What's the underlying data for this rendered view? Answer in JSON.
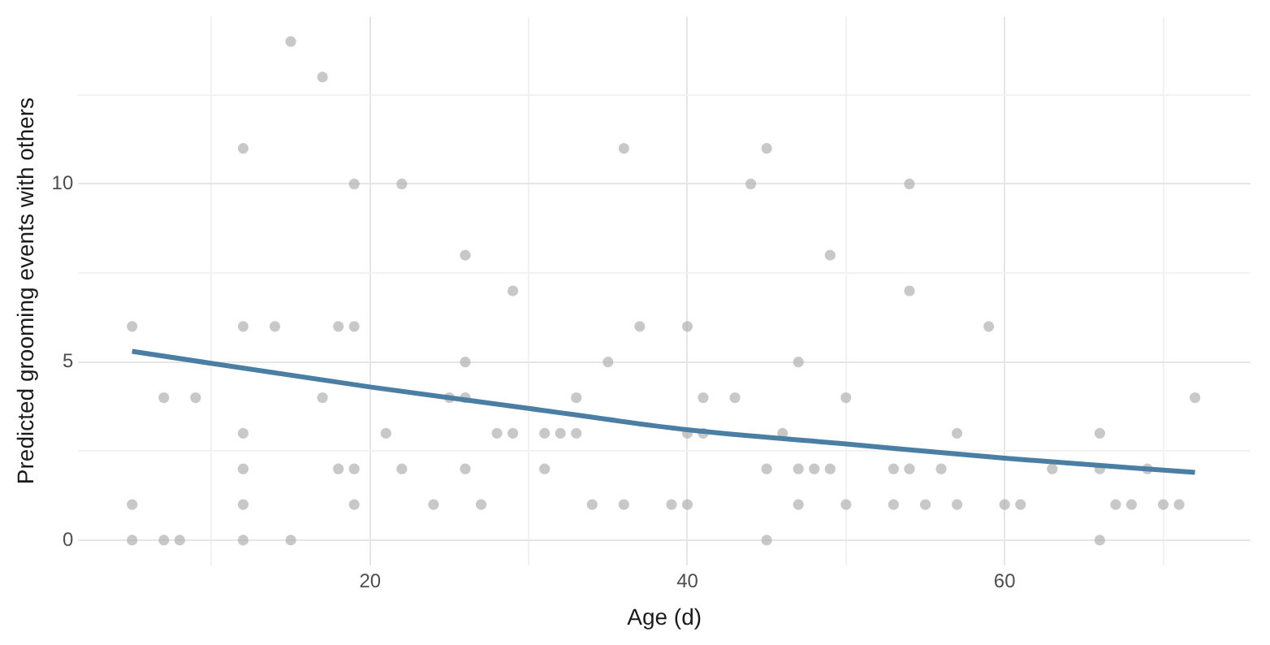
{
  "chart_data": {
    "type": "scatter",
    "xlabel": "Age (d)",
    "ylabel": "Predicted grooming events with others",
    "xlim": [
      1.6,
      75.5
    ],
    "ylim": [
      -0.7,
      14.7
    ],
    "xticks": [
      {
        "value": 10,
        "label": null
      },
      20,
      {
        "value": 30,
        "label": null
      },
      40,
      {
        "value": 50,
        "label": null
      },
      60,
      {
        "value": 70,
        "label": null
      }
    ],
    "yticks": [
      0,
      {
        "value": 2.5,
        "label": null
      },
      5,
      {
        "value": 7.5,
        "label": null
      },
      10,
      {
        "value": 12.5,
        "label": null
      }
    ],
    "grid": true,
    "legend": false,
    "marker": "circle",
    "series": [
      {
        "type": "scatter",
        "color": "#b0b0b0",
        "x": [
          15,
          17,
          12,
          19,
          22,
          26,
          29,
          36,
          45,
          44,
          49,
          54,
          54,
          5,
          12,
          14,
          18,
          19,
          26,
          7,
          9,
          17,
          25,
          26,
          12,
          21,
          28,
          12,
          18,
          19,
          22,
          26,
          5,
          12,
          19,
          24,
          27,
          5,
          7,
          8,
          12,
          15,
          37,
          40,
          35,
          47,
          33,
          41,
          43,
          50,
          29,
          31,
          32,
          33,
          40,
          41,
          46,
          31,
          45,
          47,
          48,
          49,
          34,
          36,
          39,
          40,
          47,
          50,
          45,
          59,
          57,
          66,
          72,
          53,
          54,
          56,
          63,
          66,
          69,
          53,
          55,
          57,
          60,
          61,
          67,
          68,
          70,
          71,
          66
        ],
        "values": [
          14,
          13,
          11,
          10,
          10,
          8,
          7,
          11,
          11,
          10,
          8,
          10,
          7,
          6,
          6,
          6,
          6,
          6,
          5,
          4,
          4,
          4,
          4,
          4,
          3,
          3,
          3,
          2,
          2,
          2,
          2,
          2,
          1,
          1,
          1,
          1,
          1,
          0,
          0,
          0,
          0,
          0,
          6,
          6,
          5,
          5,
          4,
          4,
          4,
          4,
          3,
          3,
          3,
          3,
          3,
          3,
          3,
          2,
          2,
          2,
          2,
          2,
          1,
          1,
          1,
          1,
          1,
          1,
          0,
          6,
          3,
          3,
          4,
          2,
          2,
          2,
          2,
          2,
          2,
          1,
          1,
          1,
          1,
          1,
          1,
          1,
          1,
          1,
          0
        ]
      },
      {
        "type": "line",
        "color": "#4a7fa3",
        "marker": "none",
        "x": [
          5,
          20,
          30,
          40,
          50,
          60,
          72
        ],
        "values": [
          5.3,
          4.3,
          3.7,
          3.1,
          2.7,
          2.3,
          1.9
        ]
      }
    ]
  }
}
